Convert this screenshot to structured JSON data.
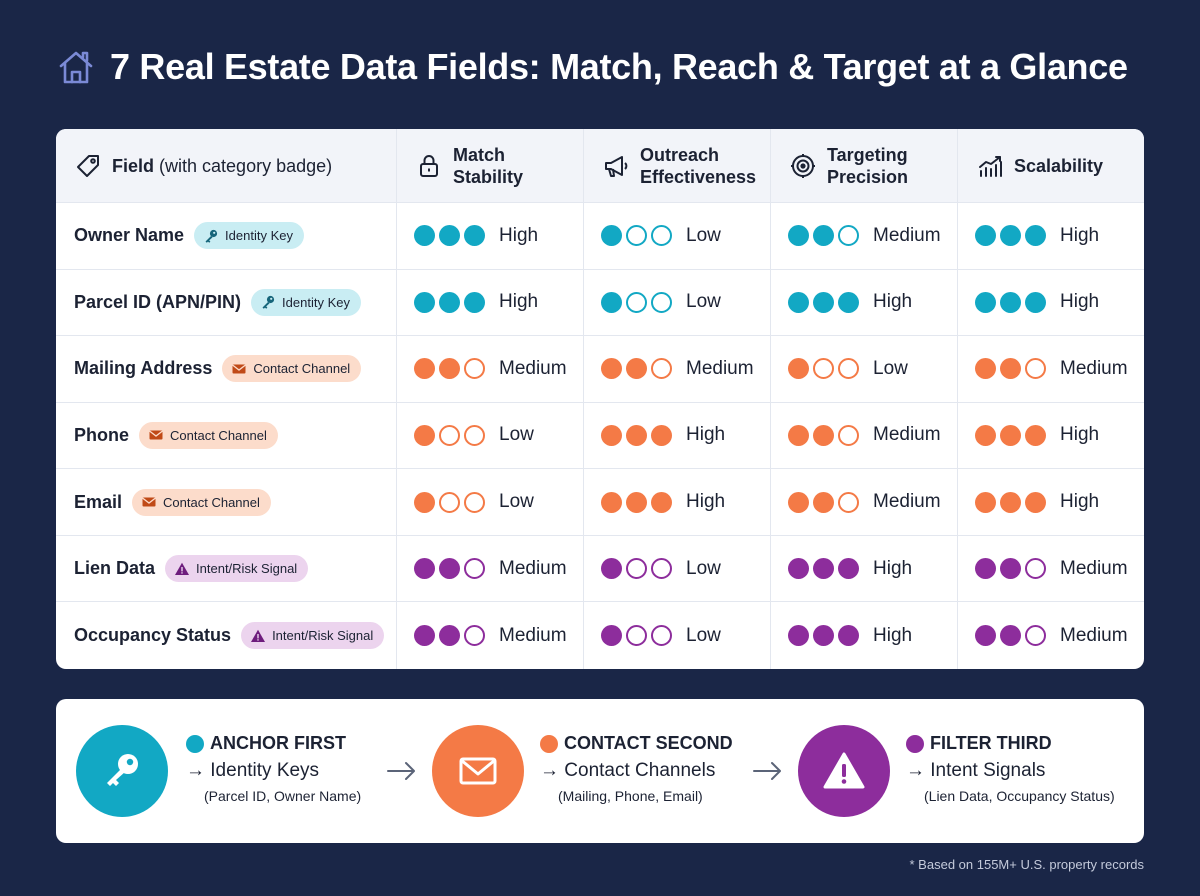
{
  "title": "7 Real Estate Data Fields: Match, Reach & Target at a Glance",
  "colors": {
    "background": "#1a2647",
    "teal": "#12a8c4",
    "orange": "#f47a46",
    "purple": "#8d2d9c",
    "empty_dot_border": "#cfd5df"
  },
  "table": {
    "headers": {
      "field": "Field",
      "field_sub": "(with category badge)",
      "match_l1": "Match",
      "match_l2": "Stability",
      "outreach_l1": "Outreach",
      "outreach_l2": "Effectiveness",
      "targeting_l1": "Targeting",
      "targeting_l2": "Precision",
      "scalability": "Scalability"
    },
    "rows": [
      {
        "field": "Owner Name",
        "badge": "Identity Key",
        "category": "teal",
        "ratings": [
          {
            "level": 3,
            "text": "High"
          },
          {
            "level": 1,
            "text": "Low"
          },
          {
            "level": 2,
            "text": "Medium"
          },
          {
            "level": 3,
            "text": "High"
          }
        ]
      },
      {
        "field": "Parcel ID (APN/PIN)",
        "badge": "Identity Key",
        "category": "teal",
        "ratings": [
          {
            "level": 3,
            "text": "High"
          },
          {
            "level": 1,
            "text": "Low"
          },
          {
            "level": 3,
            "text": "High"
          },
          {
            "level": 3,
            "text": "High"
          }
        ]
      },
      {
        "field": "Mailing Address",
        "badge": "Contact Channel",
        "category": "orange",
        "ratings": [
          {
            "level": 2,
            "text": "Medium"
          },
          {
            "level": 2,
            "text": "Medium"
          },
          {
            "level": 1,
            "text": "Low"
          },
          {
            "level": 2,
            "text": "Medium"
          }
        ]
      },
      {
        "field": "Phone",
        "badge": "Contact Channel",
        "category": "orange",
        "ratings": [
          {
            "level": 1,
            "text": "Low"
          },
          {
            "level": 3,
            "text": "High"
          },
          {
            "level": 2,
            "text": "Medium"
          },
          {
            "level": 3,
            "text": "High"
          }
        ]
      },
      {
        "field": "Email",
        "badge": "Contact Channel",
        "category": "orange",
        "ratings": [
          {
            "level": 1,
            "text": "Low"
          },
          {
            "level": 3,
            "text": "High"
          },
          {
            "level": 2,
            "text": "Medium"
          },
          {
            "level": 3,
            "text": "High"
          }
        ]
      },
      {
        "field": "Lien Data",
        "badge": "Intent/Risk Signal",
        "category": "purple",
        "ratings": [
          {
            "level": 2,
            "text": "Medium"
          },
          {
            "level": 1,
            "text": "Low"
          },
          {
            "level": 3,
            "text": "High"
          },
          {
            "level": 2,
            "text": "Medium"
          }
        ]
      },
      {
        "field": "Occupancy Status",
        "badge": "Intent/Risk Signal",
        "category": "purple",
        "ratings": [
          {
            "level": 2,
            "text": "Medium"
          },
          {
            "level": 1,
            "text": "Low"
          },
          {
            "level": 3,
            "text": "High"
          },
          {
            "level": 2,
            "text": "Medium"
          }
        ]
      }
    ]
  },
  "flow": [
    {
      "title": "ANCHOR FIRST",
      "sub": "→ Identity Keys",
      "note": "(Parcel ID, Owner Name)",
      "icon": "key-icon",
      "color": "teal"
    },
    {
      "title": "CONTACT SECOND",
      "sub": "→ Contact Channels",
      "note": "(Mailing, Phone, Email)",
      "icon": "envelope-icon",
      "color": "orange"
    },
    {
      "title": "FILTER THIRD",
      "sub": "→ Intent Signals",
      "note": "(Lien Data, Occupancy Status)",
      "icon": "warning-icon",
      "color": "purple"
    }
  ],
  "footnote": "* Based on 155M+ U.S. property records"
}
